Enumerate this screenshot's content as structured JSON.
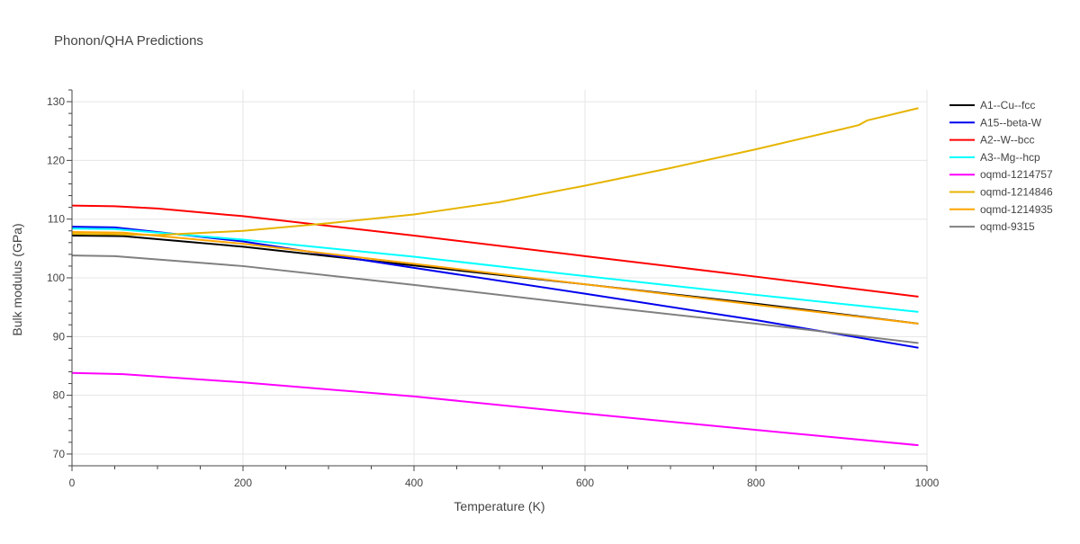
{
  "chart_data": {
    "type": "line",
    "title": "Phonon/QHA Predictions",
    "xlabel": "Temperature (K)",
    "ylabel": "Bulk modulus (GPa)",
    "xlim": [
      0,
      1000
    ],
    "ylim": [
      68,
      132
    ],
    "xticks": [
      0,
      200,
      400,
      600,
      800,
      1000
    ],
    "yticks": [
      70,
      80,
      90,
      100,
      110,
      120,
      130
    ],
    "grid": true,
    "legend_position": "right",
    "series": [
      {
        "name": "A1--Cu--fcc",
        "color": "#000000",
        "x": [
          0,
          60,
          200,
          400,
          600,
          800,
          990
        ],
        "y": [
          107.2,
          107.1,
          105.3,
          102.1,
          98.9,
          95.6,
          92.2
        ]
      },
      {
        "name": "A15--beta-W",
        "color": "#0000ee",
        "x": [
          0,
          50,
          200,
          400,
          600,
          800,
          990
        ],
        "y": [
          108.7,
          108.6,
          106.2,
          101.7,
          97.3,
          92.8,
          88.1
        ]
      },
      {
        "name": "A2--W--bcc",
        "color": "#ff0000",
        "x": [
          0,
          50,
          100,
          200,
          400,
          600,
          800,
          990
        ],
        "y": [
          112.3,
          112.2,
          111.8,
          110.5,
          107.2,
          103.7,
          100.2,
          96.8
        ]
      },
      {
        "name": "A3--Mg--hcp",
        "color": "#00ffff",
        "x": [
          0,
          50,
          200,
          400,
          600,
          800,
          990
        ],
        "y": [
          108.4,
          108.3,
          106.5,
          103.6,
          100.3,
          97.1,
          94.2
        ]
      },
      {
        "name": "oqmd-1214757",
        "color": "#ff00ff",
        "x": [
          0,
          60,
          200,
          400,
          600,
          800,
          990
        ],
        "y": [
          83.8,
          83.6,
          82.2,
          79.8,
          76.9,
          74.1,
          71.5
        ]
      },
      {
        "name": "oqmd-1214846",
        "color": "#e6b400",
        "x": [
          0,
          100,
          200,
          300,
          400,
          500,
          600,
          700,
          800,
          900,
          920,
          930,
          990
        ],
        "y": [
          107.5,
          107.3,
          108.0,
          109.3,
          110.8,
          112.9,
          115.7,
          118.7,
          121.9,
          125.3,
          126.0,
          126.8,
          128.9
        ]
      },
      {
        "name": "oqmd-1214935",
        "color": "#ffa500",
        "x": [
          0,
          60,
          200,
          400,
          600,
          800,
          990
        ],
        "y": [
          107.8,
          107.7,
          105.8,
          102.4,
          98.9,
          95.4,
          92.2
        ]
      },
      {
        "name": "oqmd-9315",
        "color": "#808080",
        "x": [
          0,
          50,
          200,
          400,
          600,
          800,
          990
        ],
        "y": [
          103.8,
          103.7,
          102.0,
          98.8,
          95.4,
          92.2,
          88.9
        ]
      }
    ]
  }
}
